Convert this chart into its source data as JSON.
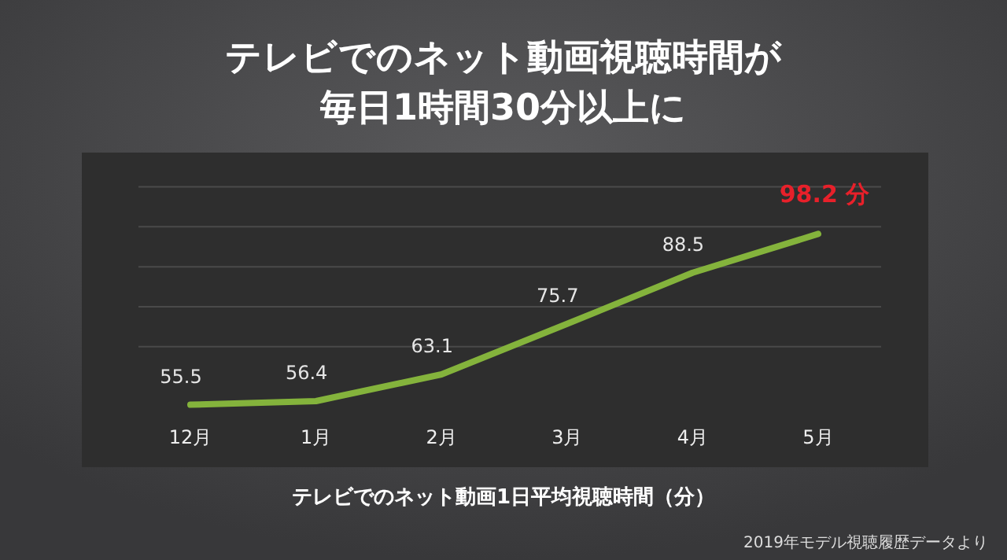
{
  "chart_data": {
    "type": "line",
    "title": "テレビでのネット動画視聴時間が毎日1時間30分以上に",
    "xlabel": "テレビでのネット動画1日平均視聴時間（分）",
    "categories": [
      "12月",
      "1月",
      "2月",
      "3月",
      "4月",
      "5月"
    ],
    "series": [
      {
        "color": "#84b33c",
        "values": [
          55.5,
          56.4,
          63.1,
          75.7,
          88.5,
          98.2
        ],
        "value_labels": [
          "55.5",
          "56.4",
          "63.1",
          "75.7",
          "88.5",
          "98.2 分"
        ]
      }
    ],
    "grid": "y",
    "tick_labels": "x",
    "marker": "none",
    "line_style": "solid",
    "annotations": [
      "2019年モデル視聴履歴データより"
    ]
  }
}
